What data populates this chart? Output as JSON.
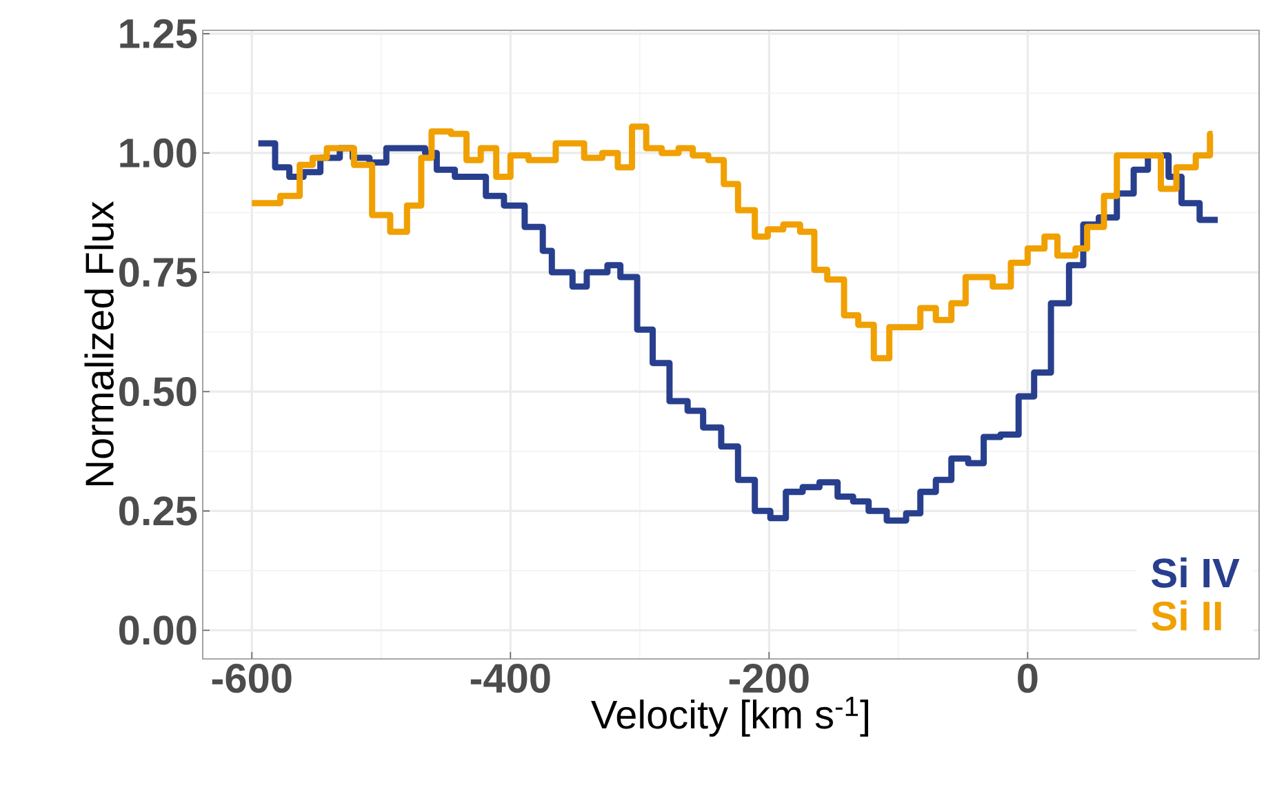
{
  "chart_data": {
    "type": "step",
    "xlabel": "Velocity [km s$^{-1}$]",
    "ylabel": "Normalized Flux",
    "xlim": [
      -638,
      179
    ],
    "ylim": [
      -0.06,
      1.257
    ],
    "xticks": [
      -600,
      -400,
      -200,
      0
    ],
    "yticks": [
      {
        "value": 0,
        "label": "0.00"
      },
      {
        "value": 0.25,
        "label": "0.25"
      },
      {
        "value": 0.5,
        "label": "0.50"
      },
      {
        "value": 0.75,
        "label": "0.75"
      },
      {
        "value": 1,
        "label": "1.00"
      },
      {
        "value": 1.25,
        "label": "1.25"
      }
    ],
    "grid": true,
    "legend": "bottom right",
    "series": [
      {
        "name": "Si IV",
        "color": "#283f8e",
        "x": [
          -595,
          -582,
          -571,
          -560,
          -547,
          -532,
          -522,
          -509,
          -496,
          -466,
          -457,
          -443,
          -419,
          -405,
          -389,
          -375,
          -368,
          -352,
          -341,
          -325,
          -315,
          -302,
          -290,
          -277,
          -263,
          -251,
          -237,
          -224,
          -211,
          -199,
          -187,
          -174,
          -161,
          -147,
          -135,
          -123,
          -109,
          -94,
          -83,
          -71,
          -59,
          -46,
          -34,
          -21,
          -7,
          5,
          18,
          32,
          43,
          55,
          69,
          82,
          93,
          109,
          119,
          133,
          147
        ],
        "values": [
          1.02,
          0.97,
          0.95,
          0.96,
          0.99,
          1.01,
          0.99,
          0.98,
          1.01,
          1.0,
          0.965,
          0.95,
          0.91,
          0.89,
          0.845,
          0.795,
          0.75,
          0.72,
          0.75,
          0.765,
          0.74,
          0.63,
          0.56,
          0.48,
          0.46,
          0.425,
          0.385,
          0.315,
          0.25,
          0.235,
          0.29,
          0.3,
          0.31,
          0.28,
          0.27,
          0.25,
          0.23,
          0.245,
          0.29,
          0.315,
          0.36,
          0.35,
          0.405,
          0.41,
          0.49,
          0.54,
          0.685,
          0.765,
          0.85,
          0.865,
          0.915,
          0.965,
          0.995,
          0.95,
          0.895,
          0.86,
          0.86
        ]
      },
      {
        "name": "Si II",
        "color": "#f0a000",
        "x": [
          -600,
          -578,
          -563,
          -553,
          -542,
          -521,
          -507,
          -493,
          -480,
          -469,
          -461,
          -446,
          -434,
          -423,
          -411,
          -400,
          -386,
          -365,
          -343,
          -329,
          -317,
          -306,
          -295,
          -283,
          -270,
          -259,
          -247,
          -235,
          -224,
          -211,
          -201,
          -189,
          -176,
          -165,
          -155,
          -142,
          -131,
          -119,
          -107,
          -83,
          -71,
          -59,
          -48,
          -27,
          -13,
          0,
          13,
          23,
          37,
          46,
          59,
          69,
          103,
          115,
          130,
          141,
          143
        ],
        "values": [
          0.895,
          0.91,
          0.975,
          0.99,
          1.01,
          0.975,
          0.87,
          0.835,
          0.89,
          0.99,
          1.045,
          1.04,
          0.985,
          1.01,
          0.95,
          0.995,
          0.985,
          1.02,
          0.99,
          1.0,
          0.97,
          1.055,
          1.01,
          1.0,
          1.01,
          0.995,
          0.985,
          0.935,
          0.88,
          0.825,
          0.84,
          0.85,
          0.835,
          0.755,
          0.735,
          0.66,
          0.64,
          0.57,
          0.635,
          0.675,
          0.65,
          0.685,
          0.74,
          0.72,
          0.77,
          0.8,
          0.825,
          0.785,
          0.8,
          0.845,
          0.91,
          0.995,
          0.925,
          0.97,
          0.995,
          1.04,
          1.04
        ]
      }
    ]
  }
}
